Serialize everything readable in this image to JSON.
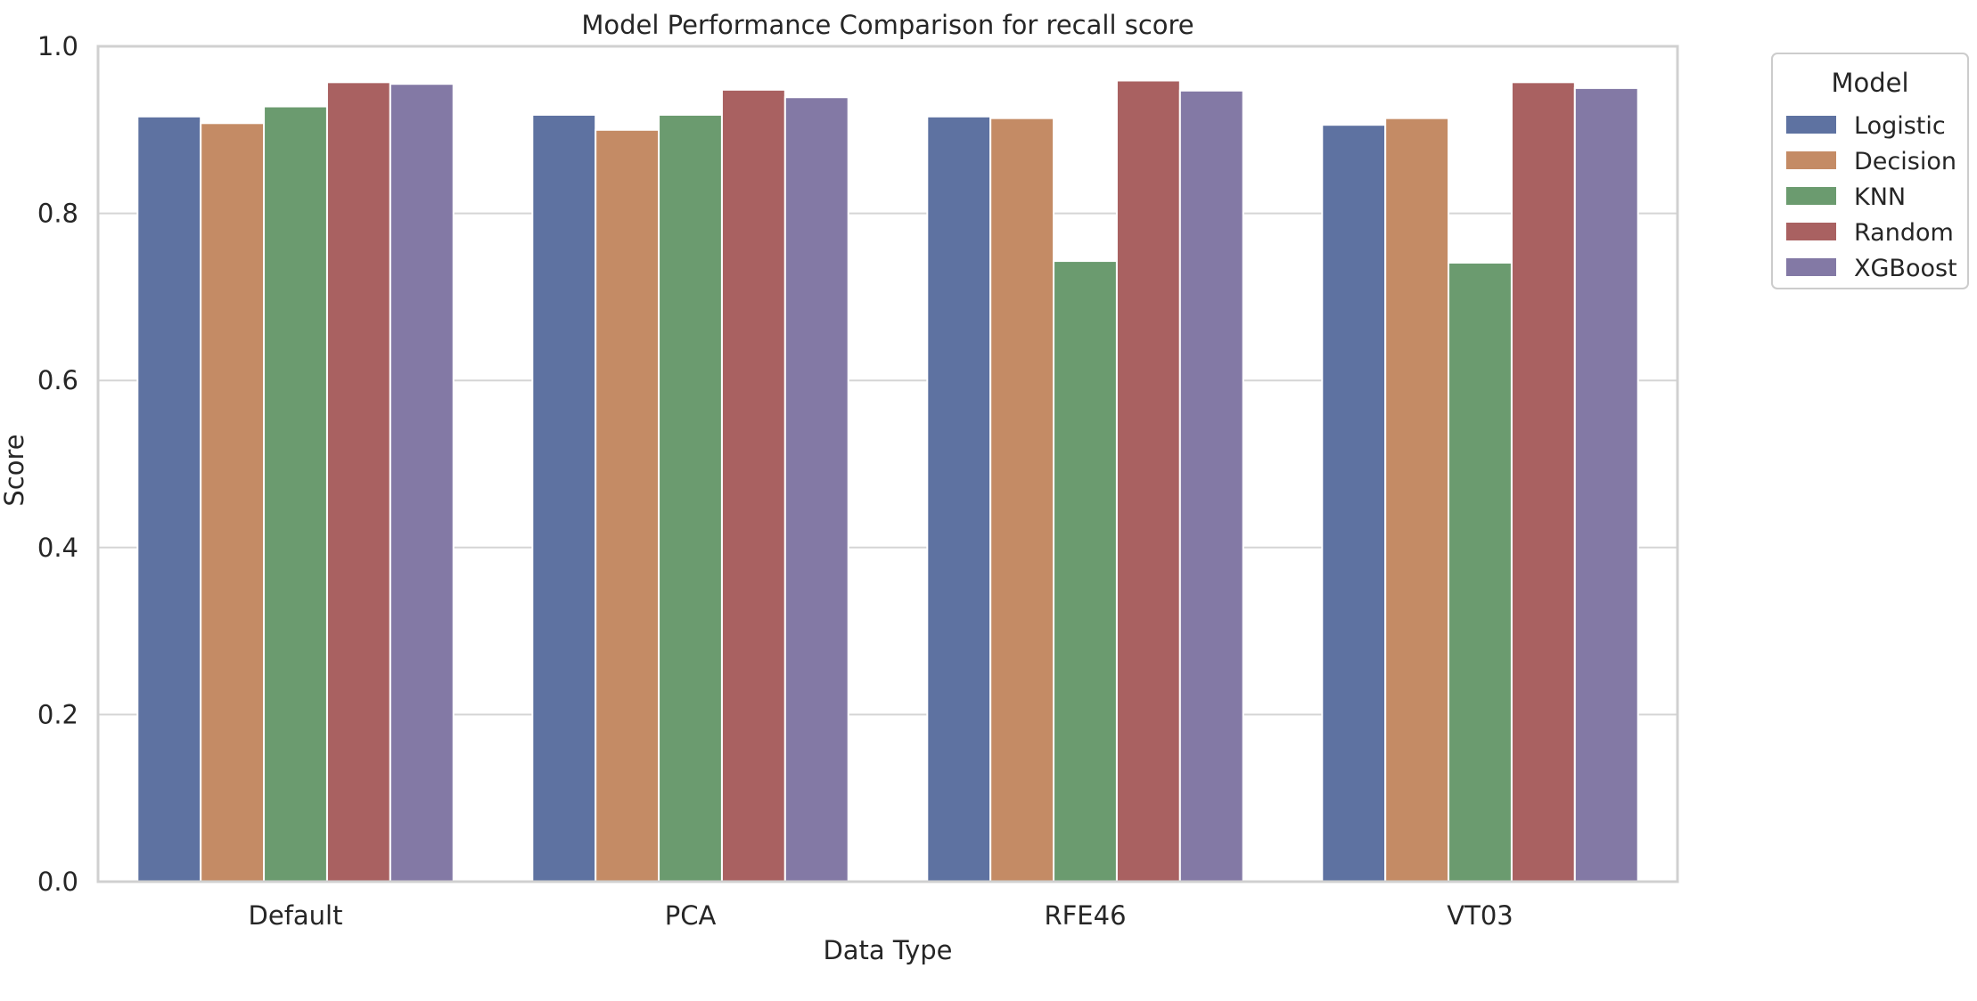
{
  "chart_data": {
    "type": "bar",
    "title": "Model Performance Comparison for recall score",
    "xlabel": "Data Type",
    "ylabel": "Score",
    "ylim": [
      0,
      1.0
    ],
    "yticks": [
      "0.0",
      "0.2",
      "0.4",
      "0.6",
      "0.8",
      "1.0"
    ],
    "categories": [
      "Default",
      "PCA",
      "RFE46",
      "VT03"
    ],
    "grid": "horizontal",
    "legend": {
      "title": "Model",
      "placement": "outside-top-right"
    },
    "series": [
      {
        "name": "Logistic",
        "color": "#5e72a1",
        "values": [
          0.916,
          0.918,
          0.916,
          0.906
        ]
      },
      {
        "name": "Decision",
        "color": "#c48b65",
        "values": [
          0.908,
          0.9,
          0.914,
          0.914
        ]
      },
      {
        "name": "KNN",
        "color": "#6b9b6f",
        "values": [
          0.928,
          0.918,
          0.743,
          0.741
        ]
      },
      {
        "name": "Random",
        "color": "#a96161",
        "values": [
          0.957,
          0.948,
          0.959,
          0.957
        ]
      },
      {
        "name": "XGBoost",
        "color": "#8379a5",
        "values": [
          0.955,
          0.939,
          0.947,
          0.95
        ]
      }
    ]
  }
}
